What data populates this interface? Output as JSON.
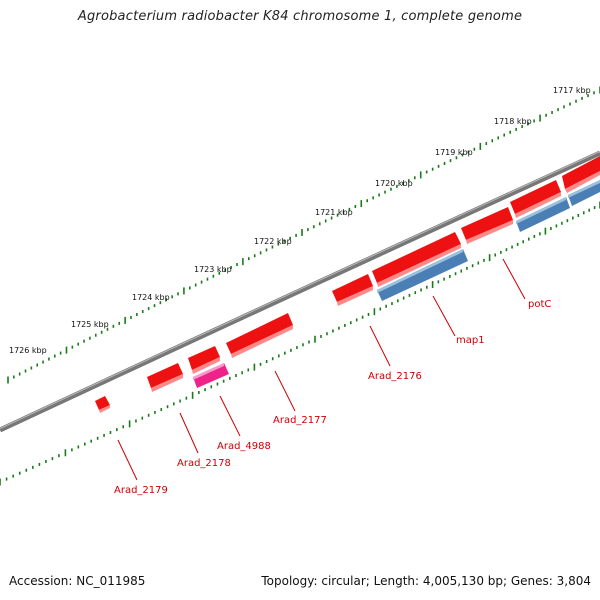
{
  "title": "Agrobacterium radiobacter K84 chromosome 1, complete genome",
  "footer": {
    "accession": "Accession: NC_011985",
    "topology": "Topology: circular; Length: 4,005,130 bp; Genes: 3,804"
  },
  "colors": {
    "forward_gene": "#ee1111",
    "reverse_gene": "#4a7fb5",
    "special_gene": "#ee2288",
    "backbone": "#777777",
    "ticks": "#1a7a1a",
    "label": "#cc0000"
  },
  "scale_labels": [
    "1717 kbp",
    "1718 kbp",
    "1719 kbp",
    "1720 kbp",
    "1721 kbp",
    "1722 kbp",
    "1723 kbp",
    "1724 kbp",
    "1725 kbp",
    "1726 kbp"
  ],
  "gene_labels": [
    "potC",
    "map1",
    "Arad_2176",
    "Arad_2177",
    "Arad_4988",
    "Arad_2178",
    "Arad_2179"
  ]
}
